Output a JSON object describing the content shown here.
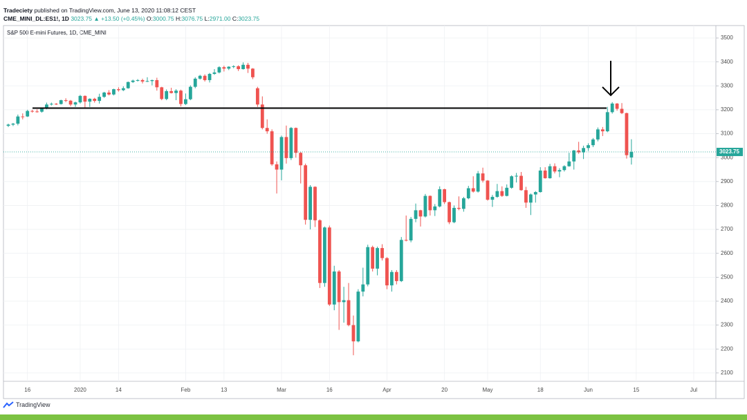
{
  "header": {
    "publisher": "Tradeciety",
    "published": "published on TradingView.com, June 13, 2020 11:08:12 CEST",
    "symbol": "CME_MINI_DL:ES1!, 1D",
    "price": "3023.75",
    "change": "+13.50 (+0.45%)",
    "ohlc": [
      {
        "label": "O:",
        "value": "3000.75"
      },
      {
        "label": "H:",
        "value": "3076.75"
      },
      {
        "label": "L:",
        "value": "2971.00"
      },
      {
        "label": "C:",
        "value": "3023.75"
      }
    ]
  },
  "footer": {
    "brand": "TradingView"
  },
  "chart_data": {
    "type": "candlestick",
    "title": "S&P 500 E-mini Futures, 1D, CME_MINI",
    "up_color": "#26a69a",
    "down_color": "#ef5350",
    "grid": true,
    "ylim": [
      2065,
      3552
    ],
    "yticks": [
      2100,
      2200,
      2300,
      2400,
      2500,
      2600,
      2700,
      2800,
      2900,
      3000,
      3100,
      3200,
      3300,
      3400,
      3500
    ],
    "categories": [
      null,
      null,
      null,
      null,
      "16",
      null,
      null,
      null,
      null,
      null,
      null,
      null,
      null,
      null,
      null,
      "2020",
      null,
      null,
      null,
      null,
      null,
      null,
      null,
      "14",
      null,
      null,
      null,
      null,
      null,
      null,
      null,
      null,
      null,
      null,
      null,
      null,
      null,
      "Feb",
      null,
      null,
      null,
      null,
      null,
      null,
      null,
      "13",
      null,
      null,
      null,
      null,
      null,
      null,
      null,
      null,
      null,
      null,
      null,
      "Mar",
      null,
      null,
      null,
      null,
      null,
      null,
      null,
      null,
      null,
      "16",
      null,
      null,
      null,
      null,
      null,
      null,
      null,
      null,
      null,
      null,
      null,
      "Apr",
      null,
      null,
      null,
      null,
      null,
      null,
      null,
      null,
      null,
      null,
      null,
      "20",
      null,
      null,
      null,
      null,
      null,
      null,
      null,
      null,
      "May",
      null,
      null,
      null,
      null,
      null,
      null,
      null,
      null,
      null,
      null,
      "18",
      null,
      null,
      null,
      null,
      null,
      null,
      null,
      null,
      null,
      "Jun",
      null,
      null,
      null,
      null,
      null,
      null,
      null,
      null,
      null,
      "15",
      null,
      null,
      null,
      null,
      null,
      null,
      null,
      null,
      null,
      null,
      null,
      "Jul"
    ],
    "open": [
      3133,
      3138,
      3142,
      3172,
      3172,
      3195,
      3193,
      3192,
      3206,
      3222,
      3225,
      3224,
      3240,
      3238,
      3222,
      3231,
      3258,
      3234,
      3246,
      3237,
      3254,
      3272,
      3264,
      3286,
      3282,
      3290,
      3316,
      3322,
      3324,
      3318,
      3320,
      3324,
      3294,
      3245,
      3278,
      3270,
      3280,
      3224,
      3244,
      3296,
      3330,
      3342,
      3324,
      3350,
      3356,
      3378,
      3372,
      3380,
      3382,
      3370,
      3388,
      3372,
      3290,
      3222,
      3124,
      3110,
      2972,
      2950,
      3086,
      2998,
      3124,
      3020,
      2968,
      2740,
      2878,
      2738,
      2476,
      2708,
      2386,
      2524,
      2396,
      2404,
      2300,
      2232,
      2440,
      2470,
      2626,
      2536,
      2622,
      2580,
      2466,
      2522,
      2484,
      2656,
      2654,
      2744,
      2780,
      2754,
      2840,
      2780,
      2796,
      2868,
      2814,
      2730,
      2790,
      2786,
      2830,
      2872,
      2858,
      2934,
      2904,
      2824,
      2836,
      2860,
      2840,
      2874,
      2922,
      2924,
      2864,
      2812,
      2846,
      2856,
      2946,
      2914,
      2964,
      2942,
      2948,
      2964,
      2984,
      3030,
      3022,
      3040,
      3052,
      3076,
      3118,
      3110,
      3190,
      3226,
      3204,
      3186,
      3000.75,
      null,
      null,
      null,
      null,
      null,
      null,
      null,
      null,
      null,
      null,
      null,
      null,
      null
    ],
    "high": [
      3142,
      3145,
      3180,
      3185,
      3200,
      3200,
      3202,
      3208,
      3230,
      3230,
      3228,
      3242,
      3248,
      3241,
      3234,
      3262,
      3260,
      3248,
      3250,
      3267,
      3275,
      3282,
      3288,
      3294,
      3298,
      3318,
      3326,
      3328,
      3330,
      3336,
      3326,
      3334,
      3296,
      3285,
      3292,
      3286,
      3284,
      3268,
      3302,
      3336,
      3346,
      3348,
      3354,
      3370,
      3382,
      3384,
      3382,
      3386,
      3386,
      3398,
      3396,
      3374,
      3296,
      3256,
      3160,
      3118,
      2984,
      3092,
      3134,
      3128,
      3126,
      3024,
      2975,
      2885,
      2880,
      2742,
      2712,
      2716,
      2548,
      2530,
      2460,
      2476,
      2340,
      2450,
      2540,
      2636,
      2632,
      2628,
      2638,
      2584,
      2530,
      2530,
      2668,
      2758,
      2752,
      2808,
      2782,
      2848,
      2842,
      2806,
      2880,
      2870,
      2816,
      2800,
      2838,
      2836,
      2882,
      2922,
      2944,
      2958,
      2906,
      2844,
      2890,
      2880,
      2888,
      2926,
      2936,
      2940,
      2878,
      2850,
      2860,
      2960,
      2960,
      2974,
      2976,
      2956,
      2968,
      3020,
      3032,
      3066,
      3050,
      3060,
      3082,
      3126,
      3128,
      3212,
      3232,
      3228,
      3228,
      3188,
      3076.75,
      null,
      null,
      null,
      null,
      null,
      null,
      null,
      null,
      null,
      null,
      null,
      null,
      null
    ],
    "low": [
      3128,
      3132,
      3135,
      3160,
      3170,
      3188,
      3188,
      3188,
      3202,
      3218,
      3220,
      3222,
      3232,
      3215,
      3212,
      3226,
      3210,
      3212,
      3230,
      3226,
      3250,
      3260,
      3260,
      3276,
      3278,
      3288,
      3312,
      3318,
      3310,
      3316,
      3302,
      3280,
      3240,
      3240,
      3268,
      3240,
      3214,
      3220,
      3240,
      3290,
      3326,
      3318,
      3314,
      3346,
      3352,
      3360,
      3366,
      3374,
      3362,
      3368,
      3354,
      3328,
      3212,
      3118,
      3100,
      2966,
      2850,
      2905,
      2975,
      2990,
      3000,
      2892,
      2720,
      2700,
      2710,
      2455,
      2460,
      2380,
      2362,
      2280,
      2310,
      2295,
      2174,
      2228,
      2420,
      2462,
      2524,
      2508,
      2570,
      2450,
      2440,
      2470,
      2480,
      2650,
      2646,
      2730,
      2712,
      2750,
      2758,
      2756,
      2792,
      2806,
      2722,
      2726,
      2780,
      2774,
      2826,
      2854,
      2854,
      2896,
      2820,
      2794,
      2832,
      2836,
      2838,
      2870,
      2896,
      2862,
      2790,
      2760,
      2812,
      2854,
      2912,
      2912,
      2934,
      2918,
      2942,
      2962,
      2950,
      3016,
      2994,
      3028,
      3044,
      3068,
      3090,
      3106,
      3184,
      3196,
      3182,
      2996,
      2971,
      null,
      null,
      null,
      null,
      null,
      null,
      null,
      null,
      null,
      null,
      null,
      null,
      null
    ],
    "close": [
      3138,
      3142,
      3172,
      3170,
      3195,
      3193,
      3192,
      3206,
      3222,
      3225,
      3224,
      3240,
      3238,
      3222,
      3231,
      3258,
      3234,
      3246,
      3237,
      3254,
      3272,
      3264,
      3286,
      3282,
      3290,
      3316,
      3322,
      3324,
      3318,
      3320,
      3324,
      3294,
      3245,
      3278,
      3270,
      3280,
      3224,
      3244,
      3296,
      3330,
      3342,
      3324,
      3350,
      3356,
      3378,
      3372,
      3380,
      3382,
      3370,
      3388,
      3372,
      3336,
      3222,
      3124,
      3110,
      2972,
      2950,
      3086,
      2998,
      3124,
      3020,
      2968,
      2740,
      2878,
      2738,
      2476,
      2708,
      2386,
      2524,
      2396,
      2404,
      2300,
      2232,
      2440,
      2470,
      2626,
      2536,
      2622,
      2580,
      2466,
      2522,
      2484,
      2656,
      2654,
      2744,
      2780,
      2754,
      2840,
      2780,
      2796,
      2868,
      2814,
      2730,
      2790,
      2786,
      2830,
      2872,
      2858,
      2934,
      2904,
      2824,
      2836,
      2860,
      2840,
      2874,
      2922,
      2924,
      2864,
      2812,
      2846,
      2856,
      2946,
      2914,
      2964,
      2942,
      2948,
      2964,
      2984,
      3030,
      3022,
      3040,
      3052,
      3076,
      3118,
      3110,
      3190,
      3226,
      3204,
      3186,
      3010.25,
      3023.75,
      null,
      null,
      null,
      null,
      null,
      null,
      null,
      null,
      null,
      null,
      null,
      null,
      null
    ]
  }
}
